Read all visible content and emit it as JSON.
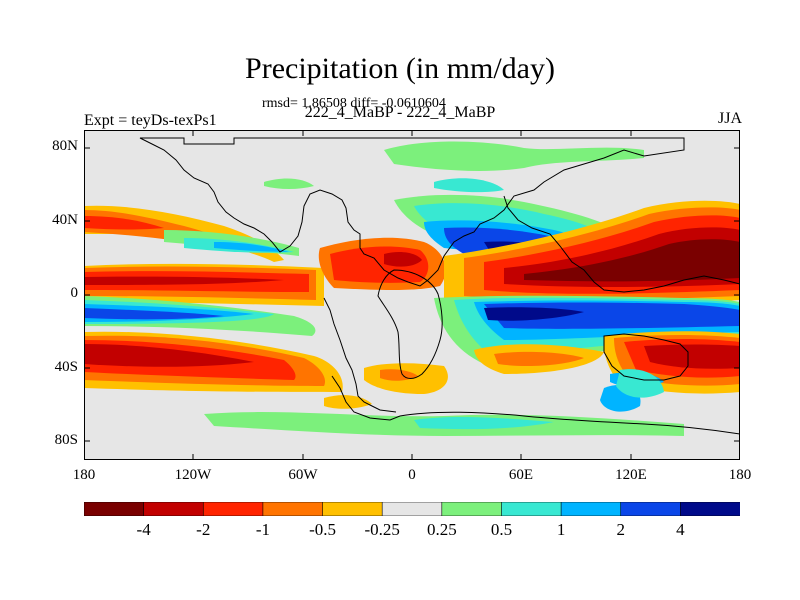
{
  "title": "Precipitation (in mm/day)",
  "stats": "rmsd= 1.86508 diff= -0.0610604",
  "subtitle": "222_4_MaBP - 222_4_MaBP",
  "experiment": "Expt = teyDs-texPs1",
  "season": "JJA",
  "axes": {
    "lat_ticks": [
      "80N",
      "40N",
      "0",
      "40S",
      "80S"
    ],
    "lon_ticks": [
      "180",
      "120W",
      "60W",
      "0",
      "60E",
      "120E",
      "180"
    ]
  },
  "legend": {
    "colors": [
      "#7a0000",
      "#c20000",
      "#ff2400",
      "#ff7400",
      "#ffc000",
      "#e6e6e6",
      "#7cf07c",
      "#38e8d2",
      "#00b4ff",
      "#0a46e8",
      "#000a8a"
    ],
    "labels": [
      "-4",
      "-2",
      "-1",
      "-0.5",
      "-0.25",
      "0.25",
      "0.5",
      "1",
      "2",
      "4"
    ]
  },
  "palette": {
    "background": "#e6e6e6",
    "dkred": "#7a0000",
    "red": "#c20000",
    "orred": "#ff2400",
    "orange": "#ff7400",
    "yellow": "#ffc000",
    "green": "#7cf07c",
    "cyan": "#38e8d2",
    "sky": "#00b4ff",
    "blue": "#0a46e8",
    "navy": "#000a8a"
  }
}
